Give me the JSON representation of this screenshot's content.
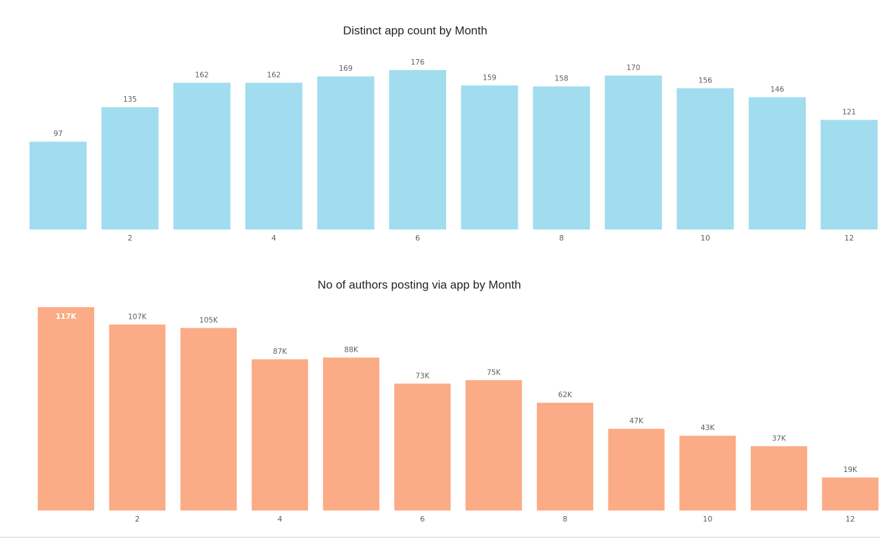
{
  "chart_data": [
    {
      "type": "bar",
      "title": "Distinct app count by Month",
      "categories": [
        1,
        2,
        3,
        4,
        5,
        6,
        7,
        8,
        9,
        10,
        11,
        12
      ],
      "values": [
        97,
        135,
        162,
        162,
        169,
        176,
        159,
        158,
        170,
        156,
        146,
        121
      ],
      "data_labels": [
        "97",
        "135",
        "162",
        "162",
        "169",
        "176",
        "159",
        "158",
        "170",
        "156",
        "146",
        "121"
      ],
      "x_tick_labels": [
        "2",
        "4",
        "6",
        "8",
        "10",
        "12"
      ],
      "x_tick_positions": [
        2,
        4,
        6,
        8,
        10,
        12
      ],
      "ylim": [
        0,
        176
      ],
      "xlabel": "",
      "ylabel": "",
      "grid": false,
      "legend": "none",
      "color": "#A1DDEE"
    },
    {
      "type": "bar",
      "title": "No of authors posting via app by Month",
      "categories": [
        1,
        2,
        3,
        4,
        5,
        6,
        7,
        8,
        9,
        10,
        11,
        12
      ],
      "values": [
        117000,
        107000,
        105000,
        87000,
        88000,
        73000,
        75000,
        62000,
        47000,
        43000,
        37000,
        19000
      ],
      "data_labels": [
        "117K",
        "107K",
        "105K",
        "87K",
        "88K",
        "73K",
        "75K",
        "62K",
        "47K",
        "43K",
        "37K",
        "19K"
      ],
      "x_tick_labels": [
        "2",
        "4",
        "6",
        "8",
        "10",
        "12"
      ],
      "x_tick_positions": [
        2,
        4,
        6,
        8,
        10,
        12
      ],
      "ylim": [
        0,
        117000
      ],
      "xlabel": "",
      "ylabel": "",
      "grid": false,
      "legend": "none",
      "color": "#FBAB85"
    }
  ]
}
